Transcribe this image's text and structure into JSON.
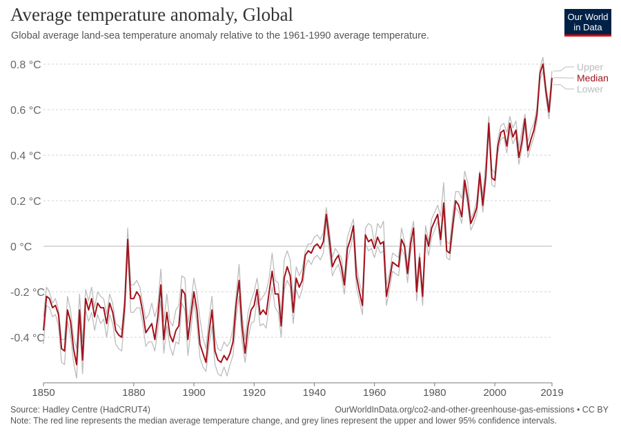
{
  "header": {
    "title": "Average temperature anomaly, Global",
    "subtitle": "Global average land-sea temperature anomaly relative to the 1961-1990 average temperature."
  },
  "logo": {
    "line1": "Our World",
    "line2": "in Data"
  },
  "footer": {
    "source": "Source: Hadley Centre (HadCRUT4)",
    "link": "OurWorldInData.org/co2-and-other-greenhouse-gas-emissions • CC BY",
    "note": "Note: The red line represents the median average temperature change, and grey lines represent the upper and lower 95% confidence intervals."
  },
  "colors": {
    "median": "#a2101a",
    "bounds": "#bcbcbc",
    "grid": "#d0d0d0",
    "zero": "#b5b5b5",
    "logo_bg": "#002147",
    "logo_accent": "#dd0000"
  },
  "chart_data": {
    "type": "line",
    "title": "Average temperature anomaly, Global",
    "xlim": [
      1850,
      2019
    ],
    "ylim": [
      -0.6,
      0.8
    ],
    "x_ticks": [
      "1850",
      "1880",
      "1900",
      "1920",
      "1940",
      "1960",
      "1980",
      "2000",
      "2019"
    ],
    "y_ticks": [
      {
        "value": 0.8,
        "label": "0.8 °C"
      },
      {
        "value": 0.6,
        "label": "0.6 °C"
      },
      {
        "value": 0.4,
        "label": "0.4 °C"
      },
      {
        "value": 0.2,
        "label": "0.2 °C"
      },
      {
        "value": 0,
        "label": "0 °C"
      },
      {
        "value": -0.2,
        "label": "-0.2 °C"
      },
      {
        "value": -0.4,
        "label": "-0.4 °C"
      }
    ],
    "grid": "horizontal dashed",
    "legend": "right end of lines",
    "x": [
      1850,
      1851,
      1852,
      1853,
      1854,
      1855,
      1856,
      1857,
      1858,
      1859,
      1860,
      1861,
      1862,
      1863,
      1864,
      1865,
      1866,
      1867,
      1868,
      1869,
      1870,
      1871,
      1872,
      1873,
      1874,
      1875,
      1876,
      1877,
      1878,
      1879,
      1880,
      1881,
      1882,
      1883,
      1884,
      1885,
      1886,
      1887,
      1888,
      1889,
      1890,
      1891,
      1892,
      1893,
      1894,
      1895,
      1896,
      1897,
      1898,
      1899,
      1900,
      1901,
      1902,
      1903,
      1904,
      1905,
      1906,
      1907,
      1908,
      1909,
      1910,
      1911,
      1912,
      1913,
      1914,
      1915,
      1916,
      1917,
      1918,
      1919,
      1920,
      1921,
      1922,
      1923,
      1924,
      1925,
      1926,
      1927,
      1928,
      1929,
      1930,
      1931,
      1932,
      1933,
      1934,
      1935,
      1936,
      1937,
      1938,
      1939,
      1940,
      1941,
      1942,
      1943,
      1944,
      1945,
      1946,
      1947,
      1948,
      1949,
      1950,
      1951,
      1952,
      1953,
      1954,
      1955,
      1956,
      1957,
      1958,
      1959,
      1960,
      1961,
      1962,
      1963,
      1964,
      1965,
      1966,
      1967,
      1968,
      1969,
      1970,
      1971,
      1972,
      1973,
      1974,
      1975,
      1976,
      1977,
      1978,
      1979,
      1980,
      1981,
      1982,
      1983,
      1984,
      1985,
      1986,
      1987,
      1988,
      1989,
      1990,
      1991,
      1992,
      1993,
      1994,
      1995,
      1996,
      1997,
      1998,
      1999,
      2000,
      2001,
      2002,
      2003,
      2004,
      2005,
      2006,
      2007,
      2008,
      2009,
      2010,
      2011,
      2012,
      2013,
      2014,
      2015,
      2016,
      2017,
      2018,
      2019
    ],
    "series": [
      {
        "name": "Upper",
        "values": [
          -0.31,
          -0.18,
          -0.2,
          -0.25,
          -0.23,
          -0.28,
          -0.41,
          -0.41,
          -0.22,
          -0.28,
          -0.4,
          -0.45,
          -0.21,
          -0.42,
          -0.19,
          -0.24,
          -0.18,
          -0.27,
          -0.2,
          -0.22,
          -0.23,
          -0.3,
          -0.21,
          -0.25,
          -0.34,
          -0.35,
          -0.37,
          -0.22,
          0.08,
          -0.17,
          -0.17,
          -0.15,
          -0.18,
          -0.25,
          -0.32,
          -0.3,
          -0.25,
          -0.31,
          -0.26,
          -0.1,
          -0.33,
          -0.21,
          -0.33,
          -0.35,
          -0.28,
          -0.26,
          -0.13,
          -0.14,
          -0.34,
          -0.25,
          -0.14,
          -0.21,
          -0.32,
          -0.4,
          -0.45,
          -0.32,
          -0.22,
          -0.4,
          -0.45,
          -0.46,
          -0.42,
          -0.44,
          -0.42,
          -0.36,
          -0.22,
          -0.08,
          -0.3,
          -0.41,
          -0.29,
          -0.24,
          -0.2,
          -0.14,
          -0.24,
          -0.22,
          -0.2,
          -0.14,
          -0.03,
          -0.15,
          -0.16,
          -0.3,
          -0.06,
          -0.02,
          -0.06,
          -0.23,
          -0.09,
          -0.13,
          -0.1,
          -0.02,
          0.01,
          0.01,
          0.04,
          0.05,
          0.03,
          0.06,
          0.17,
          0.07,
          -0.05,
          -0.01,
          -0.03,
          -0.05,
          -0.14,
          0.04,
          0.08,
          0.12,
          -0.08,
          -0.16,
          -0.21,
          0.08,
          0.1,
          0.09,
          0.01,
          0.1,
          0.08,
          0.11,
          -0.17,
          -0.12,
          -0.03,
          -0.04,
          -0.05,
          0.08,
          0.02,
          -0.09,
          0.05,
          0.11,
          -0.16,
          -0.03,
          -0.2,
          0.09,
          0.02,
          0.12,
          0.15,
          0.18,
          0.13,
          0.28,
          0.02,
          0.01,
          0.14,
          0.24,
          0.24,
          0.21,
          0.33,
          0.28,
          0.12,
          0.15,
          0.2,
          0.33,
          0.22,
          0.37,
          0.57,
          0.34,
          0.32,
          0.47,
          0.53,
          0.54,
          0.5,
          0.57,
          0.52,
          0.55,
          0.43,
          0.51,
          0.58,
          0.46,
          0.51,
          0.54,
          0.61,
          0.78,
          0.83,
          0.7,
          0.62,
          0.77
        ]
      },
      {
        "name": "Median",
        "values": [
          -0.37,
          -0.22,
          -0.23,
          -0.27,
          -0.26,
          -0.3,
          -0.45,
          -0.46,
          -0.28,
          -0.33,
          -0.45,
          -0.52,
          -0.28,
          -0.5,
          -0.23,
          -0.28,
          -0.23,
          -0.31,
          -0.25,
          -0.27,
          -0.27,
          -0.34,
          -0.25,
          -0.29,
          -0.37,
          -0.39,
          -0.4,
          -0.26,
          0.03,
          -0.23,
          -0.23,
          -0.2,
          -0.22,
          -0.29,
          -0.38,
          -0.36,
          -0.34,
          -0.41,
          -0.31,
          -0.17,
          -0.41,
          -0.29,
          -0.39,
          -0.42,
          -0.37,
          -0.35,
          -0.19,
          -0.21,
          -0.41,
          -0.3,
          -0.2,
          -0.28,
          -0.43,
          -0.47,
          -0.51,
          -0.38,
          -0.28,
          -0.46,
          -0.5,
          -0.51,
          -0.48,
          -0.5,
          -0.47,
          -0.42,
          -0.26,
          -0.15,
          -0.35,
          -0.47,
          -0.35,
          -0.28,
          -0.26,
          -0.19,
          -0.3,
          -0.28,
          -0.3,
          -0.2,
          -0.11,
          -0.21,
          -0.21,
          -0.35,
          -0.14,
          -0.09,
          -0.13,
          -0.29,
          -0.14,
          -0.18,
          -0.15,
          -0.04,
          -0.02,
          -0.03,
          0.0,
          0.01,
          -0.01,
          0.02,
          0.14,
          0.03,
          -0.09,
          -0.06,
          -0.04,
          -0.09,
          -0.17,
          -0.01,
          0.03,
          0.09,
          -0.13,
          -0.2,
          -0.26,
          0.05,
          0.02,
          0.03,
          -0.01,
          0.04,
          0.01,
          0.02,
          -0.22,
          -0.15,
          -0.07,
          -0.08,
          -0.09,
          0.03,
          0.0,
          -0.12,
          0.01,
          0.08,
          -0.2,
          -0.05,
          -0.22,
          0.05,
          0.0,
          0.08,
          0.11,
          0.14,
          0.03,
          0.19,
          -0.02,
          -0.03,
          0.09,
          0.2,
          0.18,
          0.13,
          0.29,
          0.21,
          0.1,
          0.13,
          0.17,
          0.32,
          0.18,
          0.31,
          0.54,
          0.3,
          0.29,
          0.44,
          0.5,
          0.51,
          0.44,
          0.54,
          0.48,
          0.51,
          0.39,
          0.46,
          0.56,
          0.42,
          0.47,
          0.51,
          0.58,
          0.76,
          0.8,
          0.68,
          0.59,
          0.74
        ]
      },
      {
        "name": "Lower",
        "values": [
          -0.43,
          -0.26,
          -0.27,
          -0.31,
          -0.3,
          -0.35,
          -0.51,
          -0.52,
          -0.33,
          -0.39,
          -0.51,
          -0.58,
          -0.33,
          -0.56,
          -0.28,
          -0.33,
          -0.29,
          -0.37,
          -0.3,
          -0.34,
          -0.32,
          -0.4,
          -0.3,
          -0.34,
          -0.43,
          -0.45,
          -0.46,
          -0.31,
          -0.03,
          -0.29,
          -0.29,
          -0.27,
          -0.27,
          -0.34,
          -0.44,
          -0.42,
          -0.42,
          -0.46,
          -0.37,
          -0.24,
          -0.47,
          -0.35,
          -0.44,
          -0.48,
          -0.42,
          -0.43,
          -0.25,
          -0.28,
          -0.48,
          -0.37,
          -0.24,
          -0.34,
          -0.49,
          -0.53,
          -0.55,
          -0.44,
          -0.35,
          -0.52,
          -0.56,
          -0.57,
          -0.53,
          -0.57,
          -0.52,
          -0.48,
          -0.32,
          -0.22,
          -0.42,
          -0.51,
          -0.41,
          -0.34,
          -0.33,
          -0.23,
          -0.35,
          -0.34,
          -0.36,
          -0.26,
          -0.18,
          -0.27,
          -0.29,
          -0.4,
          -0.19,
          -0.15,
          -0.18,
          -0.34,
          -0.19,
          -0.23,
          -0.19,
          -0.09,
          -0.06,
          -0.08,
          -0.05,
          -0.04,
          -0.06,
          -0.03,
          0.11,
          -0.02,
          -0.13,
          -0.1,
          -0.08,
          -0.13,
          -0.21,
          -0.06,
          -0.01,
          0.05,
          -0.18,
          -0.24,
          -0.3,
          0.01,
          -0.02,
          -0.01,
          -0.05,
          0.0,
          -0.03,
          -0.02,
          -0.26,
          -0.19,
          -0.11,
          -0.12,
          -0.13,
          -0.01,
          -0.04,
          -0.16,
          -0.03,
          0.04,
          -0.24,
          -0.09,
          -0.26,
          0.02,
          -0.04,
          0.04,
          0.07,
          0.11,
          0.0,
          0.16,
          -0.05,
          -0.06,
          0.06,
          0.17,
          0.15,
          0.1,
          0.26,
          0.18,
          0.07,
          0.1,
          0.14,
          0.29,
          0.15,
          0.28,
          0.51,
          0.27,
          0.26,
          0.41,
          0.47,
          0.48,
          0.41,
          0.51,
          0.45,
          0.48,
          0.36,
          0.43,
          0.53,
          0.39,
          0.44,
          0.48,
          0.55,
          0.73,
          0.77,
          0.65,
          0.56,
          0.71
        ]
      }
    ]
  }
}
